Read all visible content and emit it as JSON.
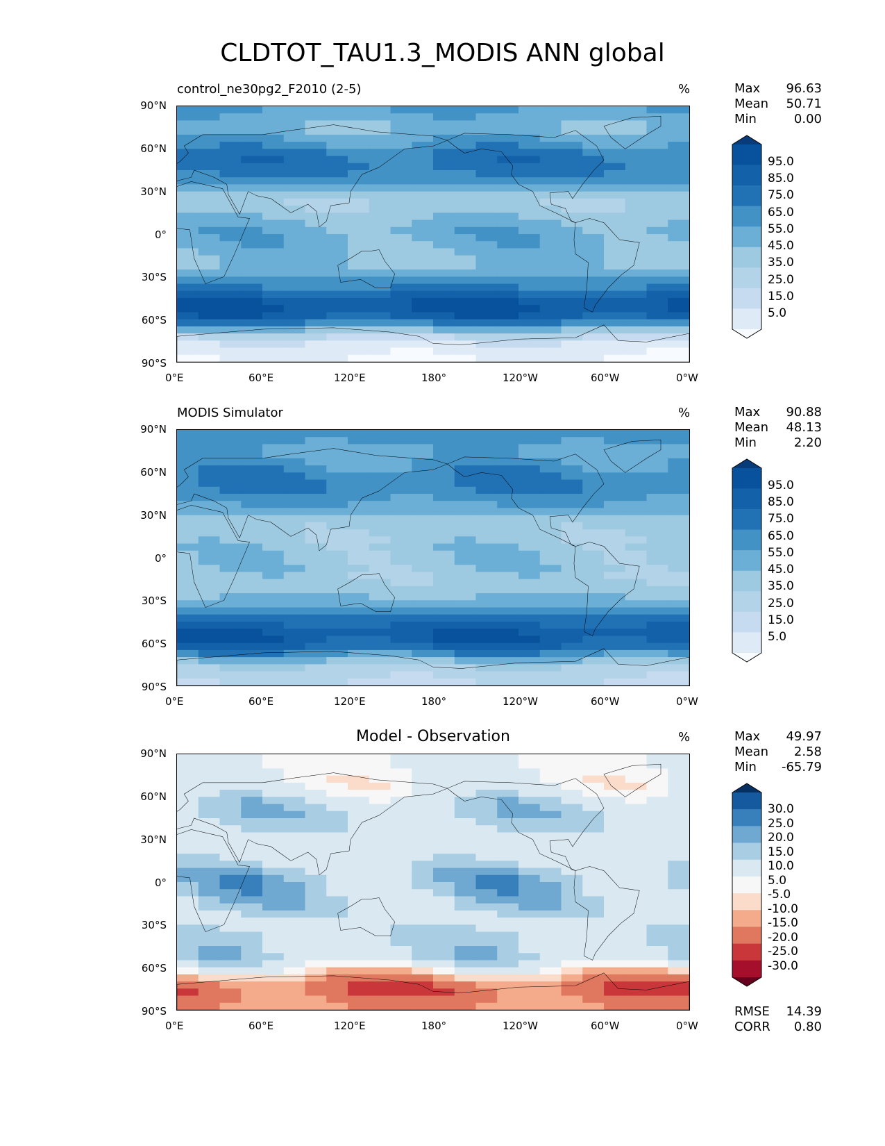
{
  "title": "CLDTOT_TAU1.3_MODIS ANN global",
  "axes": {
    "yticks": [
      "90°N",
      "60°N",
      "30°N",
      "0°",
      "30°S",
      "60°S",
      "90°S"
    ],
    "xticks": [
      "0°E",
      "60°E",
      "120°E",
      "180°",
      "120°W",
      "60°W",
      "0°W"
    ]
  },
  "colors": {
    "seq": [
      "#f7fbff",
      "#deebf7",
      "#c6dbef",
      "#b3d3e8",
      "#9ecae1",
      "#6baed6",
      "#4292c6",
      "#2171b5",
      "#1361a9",
      "#08519c",
      "#083b7a"
    ],
    "div": [
      "#67001f",
      "#a50f2b",
      "#c9373a",
      "#e0775f",
      "#f4ab8b",
      "#fbdccb",
      "#f7f7f7",
      "#d9e8f1",
      "#a9cee4",
      "#6fa9d1",
      "#3880bb",
      "#155a9f",
      "#053061"
    ]
  },
  "panels": [
    {
      "subtitle": "control_ne30pg2_F2010 (2-5)",
      "units": "%",
      "stats": [
        {
          "label": "Max",
          "value": "96.63"
        },
        {
          "label": "Mean",
          "value": "50.71"
        },
        {
          "label": "Min",
          "value": "0.00"
        }
      ],
      "colorbar_labels": [
        "95.0",
        "85.0",
        "75.0",
        "65.0",
        "55.0",
        "45.0",
        "35.0",
        "25.0",
        "15.0",
        "5.0"
      ]
    },
    {
      "subtitle": "MODIS Simulator",
      "units": "%",
      "stats": [
        {
          "label": "Max",
          "value": "90.88"
        },
        {
          "label": "Mean",
          "value": "48.13"
        },
        {
          "label": "Min",
          "value": "2.20"
        }
      ],
      "colorbar_labels": [
        "95.0",
        "85.0",
        "75.0",
        "65.0",
        "55.0",
        "45.0",
        "35.0",
        "25.0",
        "15.0",
        "5.0"
      ]
    },
    {
      "subtitle": "Model - Observation",
      "units": "%",
      "stats": [
        {
          "label": "Max",
          "value": "49.97"
        },
        {
          "label": "Mean",
          "value": "2.58"
        },
        {
          "label": "Min",
          "value": "-65.79"
        }
      ],
      "colorbar_labels": [
        "30.0",
        "25.0",
        "20.0",
        "15.0",
        "10.0",
        "5.0",
        "-5.0",
        "-10.0",
        "-15.0",
        "-20.0",
        "-25.0",
        "-30.0"
      ],
      "extra_stats": [
        {
          "label": "RMSE",
          "value": "14.39"
        },
        {
          "label": "CORR",
          "value": "0.80"
        }
      ]
    }
  ],
  "chart_data": [
    {
      "type": "heatmap",
      "title": "control_ne30pg2_F2010 (2-5)",
      "units": "%",
      "xlim": [
        0,
        360
      ],
      "ylim": [
        -90,
        90
      ],
      "levels": [
        0,
        5,
        15,
        25,
        35,
        45,
        55,
        65,
        75,
        85,
        95,
        100
      ],
      "zonal_profile": {
        "lat": [
          -85,
          -75,
          -65,
          -55,
          -45,
          -35,
          -25,
          -15,
          -5,
          5,
          15,
          25,
          35,
          45,
          55,
          65,
          75,
          85
        ],
        "mean": [
          5,
          15,
          55,
          88,
          80,
          60,
          45,
          45,
          50,
          50,
          40,
          35,
          55,
          68,
          70,
          55,
          45,
          55
        ]
      }
    },
    {
      "type": "heatmap",
      "title": "MODIS Simulator",
      "units": "%",
      "xlim": [
        0,
        360
      ],
      "ylim": [
        -90,
        90
      ],
      "levels": [
        0,
        5,
        15,
        25,
        35,
        45,
        55,
        65,
        75,
        85,
        95,
        100
      ],
      "zonal_profile": {
        "lat": [
          -85,
          -75,
          -65,
          -55,
          -45,
          -35,
          -25,
          -15,
          -5,
          5,
          15,
          25,
          35,
          45,
          55,
          65,
          75,
          85
        ],
        "mean": [
          25,
          35,
          70,
          85,
          75,
          55,
          42,
          38,
          42,
          42,
          38,
          38,
          52,
          62,
          66,
          58,
          50,
          60
        ]
      }
    },
    {
      "type": "heatmap",
      "title": "Model - Observation",
      "units": "%",
      "xlim": [
        0,
        360
      ],
      "ylim": [
        -90,
        90
      ],
      "levels": [
        -30,
        -25,
        -20,
        -15,
        -10,
        -5,
        5,
        10,
        15,
        20,
        25,
        30
      ],
      "zonal_profile": {
        "lat": [
          -85,
          -75,
          -65,
          -55,
          -45,
          -35,
          -25,
          -15,
          -5,
          5,
          15,
          25,
          35,
          45,
          55,
          65,
          75,
          85
        ],
        "mean": [
          -20,
          -25,
          -15,
          3,
          5,
          5,
          3,
          7,
          8,
          8,
          2,
          -3,
          3,
          6,
          4,
          -3,
          -5,
          -5
        ]
      }
    }
  ]
}
